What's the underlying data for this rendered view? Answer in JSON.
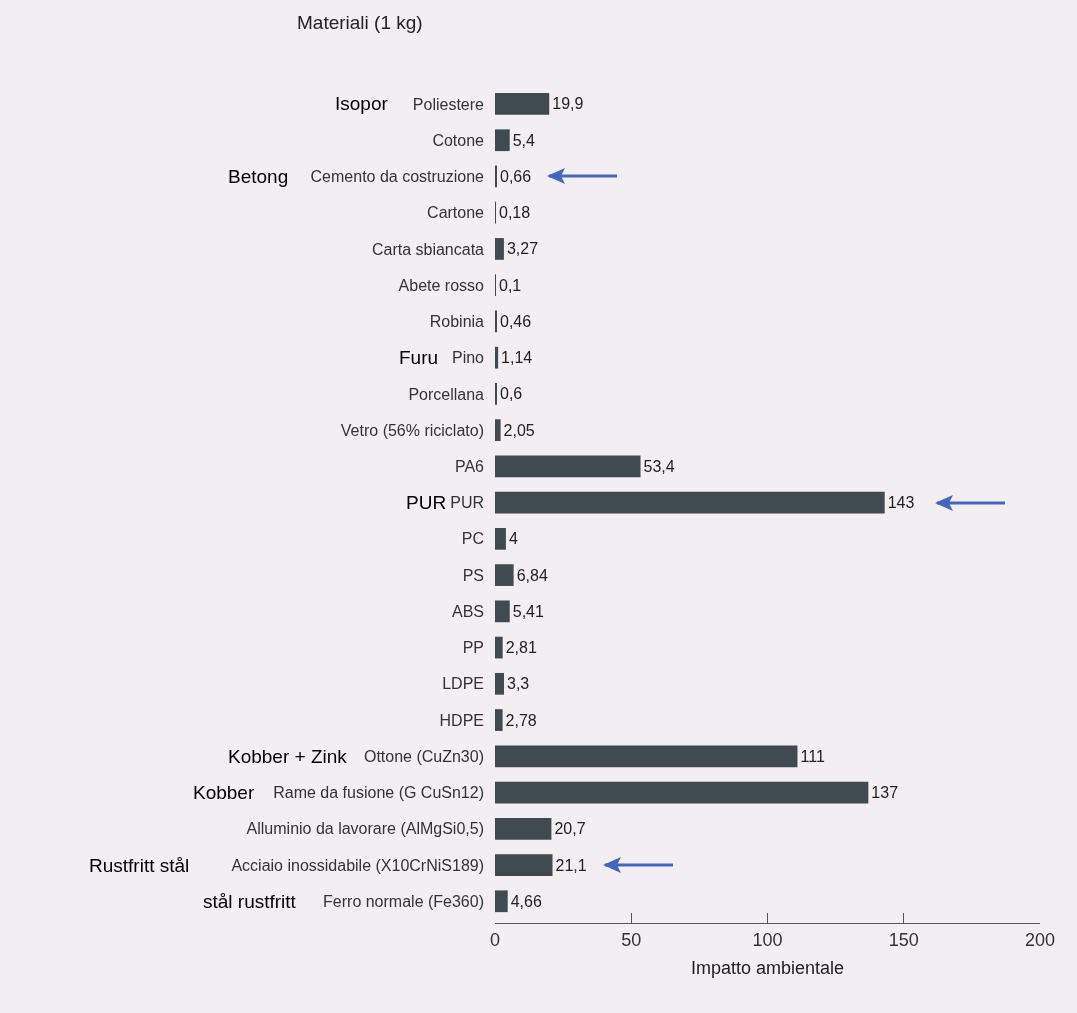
{
  "chart_data": {
    "type": "bar",
    "orientation": "horizontal",
    "title": "Materiali (1 kg)",
    "xlabel": "Impatto ambientale",
    "categories": [
      "Poliestere",
      "Cotone",
      "Cemento da costruzione",
      "Cartone",
      "Carta sbiancata",
      "Abete rosso",
      "Robinia",
      "Pino",
      "Porcellana",
      "Vetro (56% riciclato)",
      "PA6",
      "PUR",
      "PC",
      "PS",
      "ABS",
      "PP",
      "LDPE",
      "HDPE",
      "Ottone (CuZn30)",
      "Rame da fusione (G CuSn12)",
      "Alluminio da lavorare (AlMgSi0,5)",
      "Acciaio inossidabile (X10CrNiS189)",
      "Ferro normale (Fe360)"
    ],
    "values": [
      19.9,
      5.4,
      0.66,
      0.18,
      3.27,
      0.1,
      0.46,
      1.14,
      0.6,
      2.05,
      53.4,
      143,
      4,
      6.84,
      5.41,
      2.81,
      3.3,
      2.78,
      111,
      137,
      20.7,
      21.1,
      4.66
    ],
    "value_labels": [
      "19,9",
      "5,4",
      "0,66",
      "0,18",
      "3,27",
      "0,1",
      "0,46",
      "1,14",
      "0,6",
      "2,05",
      "53,4",
      "143",
      "4",
      "6,84",
      "5,41",
      "2,81",
      "3,3",
      "2,78",
      "111",
      "137",
      "20,7",
      "21,1",
      "4,66"
    ],
    "color": "#3f4b50",
    "xlim": [
      0,
      200
    ],
    "xticks": [
      0,
      50,
      100,
      150,
      200
    ],
    "grid": false,
    "annotations": [
      "Isopor",
      "Betong",
      "Furu",
      "PUR",
      "Kobber + Zink",
      "Kobber",
      "Rustfritt stål",
      "stål rustfritt"
    ]
  }
}
